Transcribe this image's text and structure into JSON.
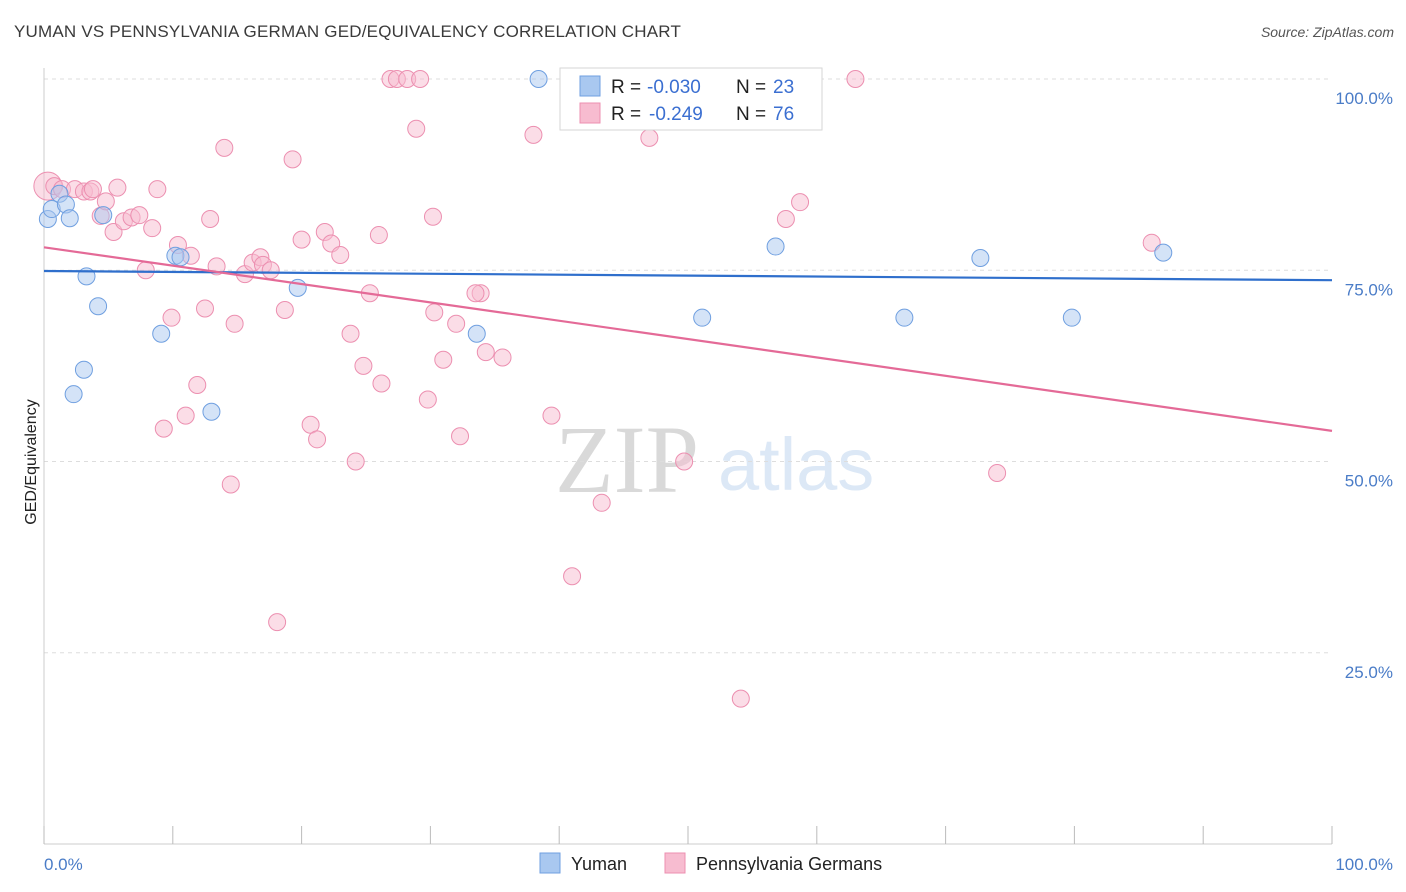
{
  "title": "YUMAN VS PENNSYLVANIA GERMAN GED/EQUIVALENCY CORRELATION CHART",
  "source": "Source: ZipAtlas.com",
  "watermark": {
    "zip": "ZIP",
    "atlas": "atlas"
  },
  "colors": {
    "yuman_fill": "#a9c8f0",
    "yuman_stroke": "#6f9fe0",
    "yuman_line": "#2f6fcc",
    "penn_fill": "#f7bcd0",
    "penn_stroke": "#ec8fb0",
    "penn_line": "#e46a97",
    "tick_label": "#4a7cc7",
    "grid": "#dddddd"
  },
  "legend": {
    "rows": [
      {
        "r_label": "R =",
        "r_value": "-0.030",
        "n_label": "N =",
        "n_value": "23"
      },
      {
        "r_label": "R =",
        "r_value": "-0.249",
        "n_label": "N =",
        "n_value": "76"
      }
    ],
    "bottom": [
      "Yuman",
      "Pennsylvania Germans"
    ]
  },
  "chart_data": {
    "type": "scatter",
    "title": "YUMAN VS PENNSYLVANIA GERMAN GED/EQUIVALENCY CORRELATION CHART",
    "xlabel": "",
    "ylabel": "GED/Equivalency",
    "xlim": [
      0,
      100
    ],
    "ylim": [
      0,
      100
    ],
    "x_tick_labels": [
      "0.0%",
      "100.0%"
    ],
    "y_ticks": [
      25,
      50,
      75,
      100
    ],
    "y_tick_labels": [
      "25.0%",
      "50.0%",
      "75.0%",
      "100.0%"
    ],
    "grid": true,
    "series": [
      {
        "name": "Yuman",
        "trend": {
          "x": [
            0,
            100
          ],
          "y": [
            74.9,
            73.7
          ]
        },
        "points": [
          {
            "x": 0.3,
            "y": 81.7
          },
          {
            "x": 0.6,
            "y": 83.0
          },
          {
            "x": 1.2,
            "y": 85.0
          },
          {
            "x": 1.7,
            "y": 83.6
          },
          {
            "x": 2.0,
            "y": 81.8
          },
          {
            "x": 2.3,
            "y": 58.8
          },
          {
            "x": 3.1,
            "y": 62.0
          },
          {
            "x": 3.3,
            "y": 74.2
          },
          {
            "x": 4.2,
            "y": 70.3
          },
          {
            "x": 4.6,
            "y": 82.2
          },
          {
            "x": 9.1,
            "y": 66.7
          },
          {
            "x": 10.2,
            "y": 76.9
          },
          {
            "x": 10.6,
            "y": 76.7
          },
          {
            "x": 13.0,
            "y": 56.5
          },
          {
            "x": 19.7,
            "y": 72.7
          },
          {
            "x": 33.6,
            "y": 66.7
          },
          {
            "x": 38.4,
            "y": 100.0
          },
          {
            "x": 51.1,
            "y": 68.8
          },
          {
            "x": 56.8,
            "y": 78.1
          },
          {
            "x": 66.8,
            "y": 68.8
          },
          {
            "x": 72.7,
            "y": 76.6
          },
          {
            "x": 79.8,
            "y": 68.8
          },
          {
            "x": 86.9,
            "y": 77.3
          }
        ]
      },
      {
        "name": "Pennsylvania Germans",
        "trend": {
          "x": [
            0,
            100
          ],
          "y": [
            78.0,
            54.0
          ]
        },
        "points": [
          {
            "x": 0.3,
            "y": 86.0
          },
          {
            "x": 0.8,
            "y": 86.0
          },
          {
            "x": 1.4,
            "y": 85.6
          },
          {
            "x": 2.4,
            "y": 85.6
          },
          {
            "x": 3.1,
            "y": 85.3
          },
          {
            "x": 3.6,
            "y": 85.3
          },
          {
            "x": 3.8,
            "y": 85.6
          },
          {
            "x": 4.4,
            "y": 82.1
          },
          {
            "x": 4.8,
            "y": 84.0
          },
          {
            "x": 5.4,
            "y": 80.0
          },
          {
            "x": 5.7,
            "y": 85.8
          },
          {
            "x": 6.2,
            "y": 81.4
          },
          {
            "x": 6.8,
            "y": 81.9
          },
          {
            "x": 7.4,
            "y": 82.2
          },
          {
            "x": 7.9,
            "y": 75.0
          },
          {
            "x": 8.4,
            "y": 80.5
          },
          {
            "x": 8.8,
            "y": 85.6
          },
          {
            "x": 9.3,
            "y": 54.3
          },
          {
            "x": 9.9,
            "y": 68.8
          },
          {
            "x": 10.4,
            "y": 78.3
          },
          {
            "x": 11.0,
            "y": 56.0
          },
          {
            "x": 11.4,
            "y": 76.9
          },
          {
            "x": 11.9,
            "y": 60.0
          },
          {
            "x": 12.5,
            "y": 70.0
          },
          {
            "x": 12.9,
            "y": 81.7
          },
          {
            "x": 13.4,
            "y": 75.5
          },
          {
            "x": 14.0,
            "y": 91.0
          },
          {
            "x": 14.5,
            "y": 47.0
          },
          {
            "x": 14.8,
            "y": 68.0
          },
          {
            "x": 15.6,
            "y": 74.5
          },
          {
            "x": 16.2,
            "y": 76.0
          },
          {
            "x": 16.8,
            "y": 76.7
          },
          {
            "x": 17.0,
            "y": 75.7
          },
          {
            "x": 17.6,
            "y": 75.0
          },
          {
            "x": 18.1,
            "y": 29.0
          },
          {
            "x": 18.7,
            "y": 69.8
          },
          {
            "x": 19.3,
            "y": 89.5
          },
          {
            "x": 20.0,
            "y": 79.0
          },
          {
            "x": 20.7,
            "y": 54.8
          },
          {
            "x": 21.2,
            "y": 52.9
          },
          {
            "x": 21.8,
            "y": 80.0
          },
          {
            "x": 22.3,
            "y": 78.5
          },
          {
            "x": 23.0,
            "y": 77.0
          },
          {
            "x": 23.8,
            "y": 66.7
          },
          {
            "x": 24.2,
            "y": 50.0
          },
          {
            "x": 24.8,
            "y": 62.5
          },
          {
            "x": 25.3,
            "y": 72.0
          },
          {
            "x": 26.0,
            "y": 79.6
          },
          {
            "x": 26.2,
            "y": 60.2
          },
          {
            "x": 26.9,
            "y": 100.0
          },
          {
            "x": 27.4,
            "y": 100.0
          },
          {
            "x": 28.2,
            "y": 100.0
          },
          {
            "x": 28.9,
            "y": 93.5
          },
          {
            "x": 29.2,
            "y": 100.0
          },
          {
            "x": 29.8,
            "y": 58.1
          },
          {
            "x": 30.2,
            "y": 82.0
          },
          {
            "x": 30.3,
            "y": 69.5
          },
          {
            "x": 31.0,
            "y": 63.3
          },
          {
            "x": 32.0,
            "y": 68.0
          },
          {
            "x": 32.3,
            "y": 53.3
          },
          {
            "x": 33.9,
            "y": 72.0
          },
          {
            "x": 34.3,
            "y": 64.3
          },
          {
            "x": 35.6,
            "y": 63.6
          },
          {
            "x": 38.0,
            "y": 92.7
          },
          {
            "x": 39.4,
            "y": 56.0
          },
          {
            "x": 41.0,
            "y": 35.0
          },
          {
            "x": 43.3,
            "y": 44.6
          },
          {
            "x": 33.5,
            "y": 72.0
          },
          {
            "x": 47.0,
            "y": 92.3
          },
          {
            "x": 49.7,
            "y": 50.0
          },
          {
            "x": 54.1,
            "y": 19.0
          },
          {
            "x": 57.6,
            "y": 81.7
          },
          {
            "x": 58.7,
            "y": 83.9
          },
          {
            "x": 63.0,
            "y": 100.0
          },
          {
            "x": 74.0,
            "y": 48.5
          },
          {
            "x": 86.0,
            "y": 78.6
          }
        ]
      }
    ]
  }
}
